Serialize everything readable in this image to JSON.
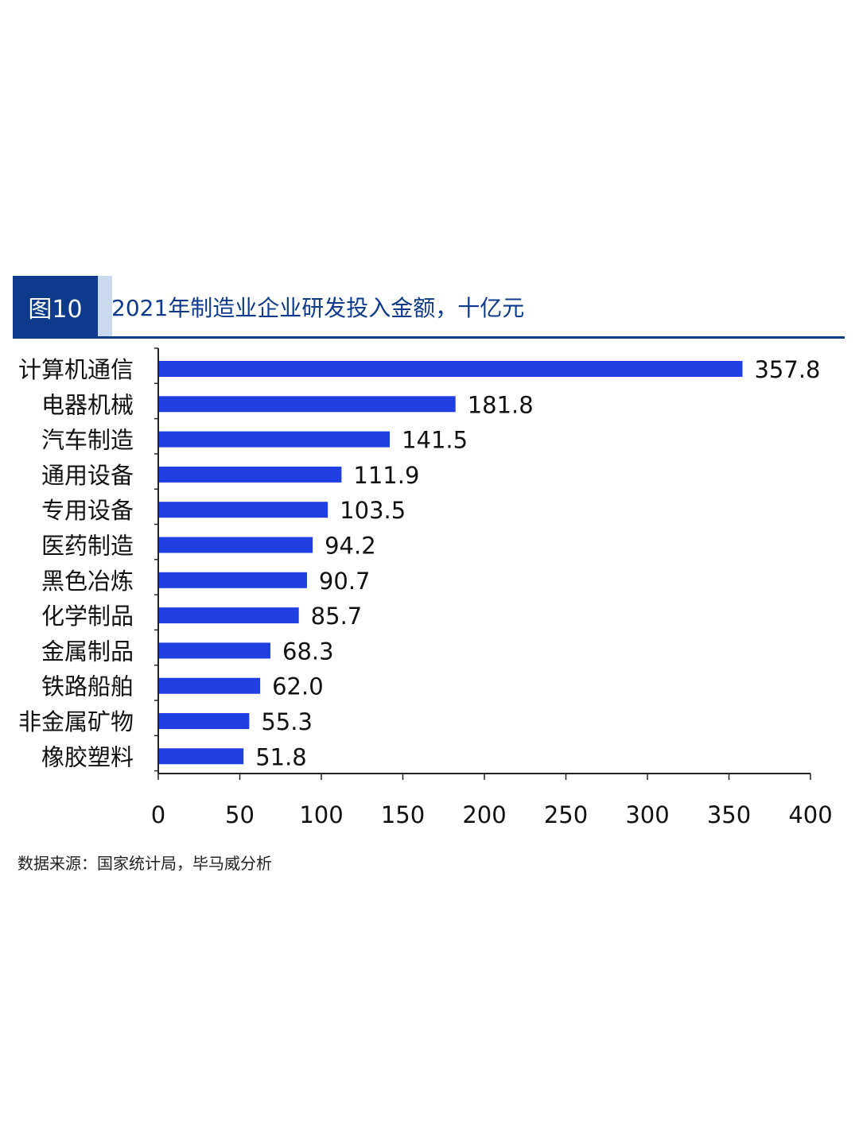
{
  "header": {
    "badge": "图10",
    "title": "2021年制造业企业研发投入金额，十亿元"
  },
  "colors": {
    "bar": "#1f3fe0",
    "header_blue": "#0e3a8c",
    "badge_edge": "#c9d9ee"
  },
  "chart_data": {
    "type": "bar",
    "orientation": "horizontal",
    "categories": [
      "计算机通信",
      "电器机械",
      "汽车制造",
      "通用设备",
      "专用设备",
      "医药制造",
      "黑色冶炼",
      "化学制品",
      "金属制品",
      "铁路船舶",
      "非金属矿物",
      "橡胶塑料"
    ],
    "values": [
      357.8,
      181.8,
      141.5,
      111.9,
      103.5,
      94.2,
      90.7,
      85.7,
      68.3,
      62.0,
      55.3,
      51.8
    ],
    "value_labels": [
      "357.8",
      "181.8",
      "141.5",
      "111.9",
      "103.5",
      "94.2",
      "90.7",
      "85.7",
      "68.3",
      "62.0",
      "55.3",
      "51.8"
    ],
    "x_ticks": [
      "0",
      "50",
      "100",
      "150",
      "200",
      "250",
      "300",
      "350",
      "400"
    ],
    "xlim": [
      0,
      400
    ],
    "grid": false,
    "legend": "none"
  },
  "footer": {
    "source": "数据来源：国家统计局，毕马威分析"
  }
}
